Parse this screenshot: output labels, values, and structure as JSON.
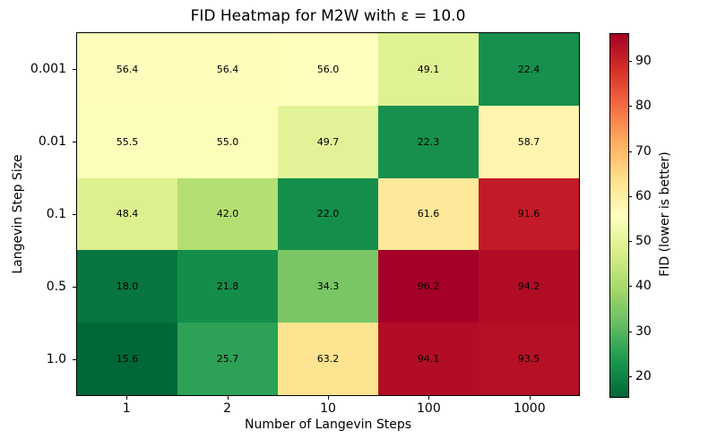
{
  "chart_data": {
    "type": "heatmap",
    "title": "FID Heatmap for M2W with ε = 10.0",
    "xlabel": "Number of Langevin Steps",
    "ylabel": "Langevin Step Size",
    "x_categories": [
      "1",
      "2",
      "10",
      "100",
      "1000"
    ],
    "y_categories": [
      "0.001",
      "0.01",
      "0.1",
      "0.5",
      "1.0"
    ],
    "values": [
      [
        56.4,
        56.4,
        56.0,
        49.1,
        22.4
      ],
      [
        55.5,
        55.0,
        49.7,
        22.3,
        58.7
      ],
      [
        48.4,
        42.0,
        22.0,
        61.6,
        91.6
      ],
      [
        18.0,
        21.8,
        34.3,
        96.2,
        94.2
      ],
      [
        15.6,
        25.7,
        63.2,
        94.1,
        93.5
      ]
    ],
    "value_format_decimals": 1,
    "annotation_color": "#000000",
    "colorbar": {
      "label": "FID (lower is better)",
      "ticks": [
        20,
        30,
        40,
        50,
        60,
        70,
        80,
        90
      ],
      "vmin": 15.6,
      "vmax": 96.2,
      "colormap": "RdYlGn_r",
      "gradient_low_to_high": [
        "#006837",
        "#1a9850",
        "#66bd63",
        "#a6d96a",
        "#d9ef8b",
        "#ffffbf",
        "#fee08b",
        "#fdae61",
        "#f46d43",
        "#d73027",
        "#a50026"
      ]
    },
    "layout": {
      "grid": "off",
      "legend": "none",
      "colorbar_position": "right"
    }
  }
}
